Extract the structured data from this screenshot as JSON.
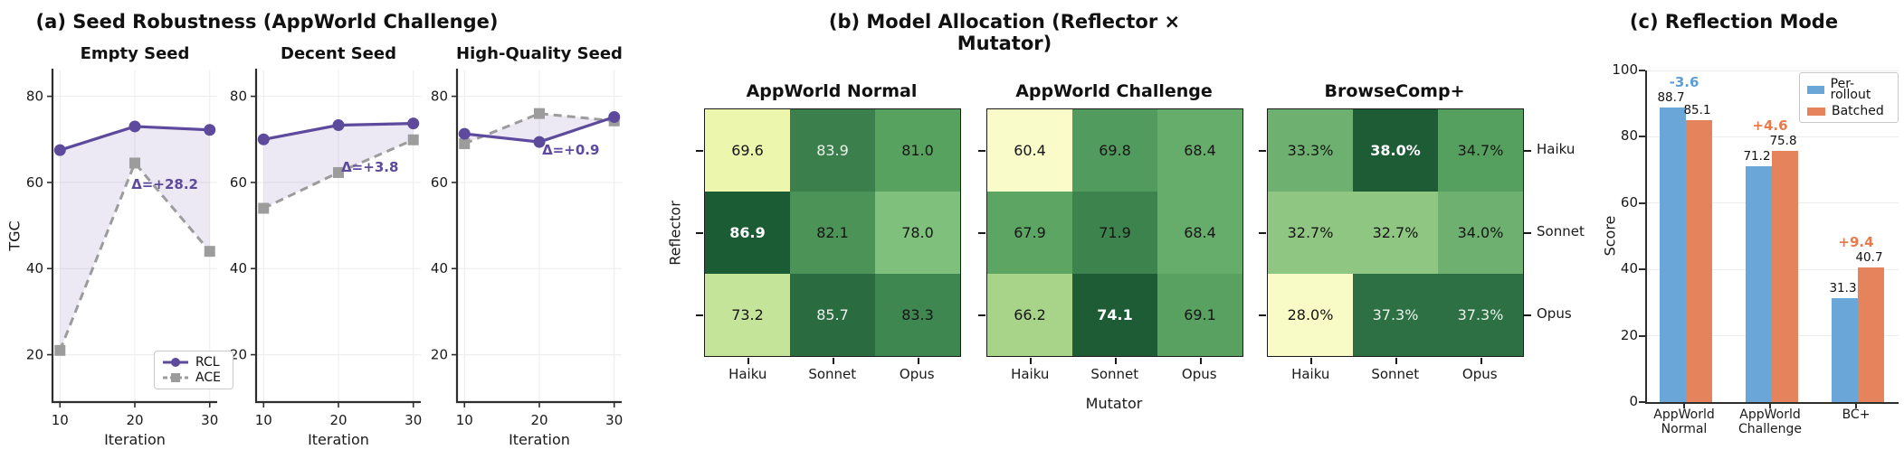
{
  "chart_data": [
    {
      "type": "line",
      "panel": "a",
      "title": "(a) Seed Robustness (AppWorld Challenge)",
      "xlabel": "Iteration",
      "ylabel": "TGC",
      "x": [
        10,
        20,
        30
      ],
      "x_ticks": [
        10,
        20,
        30
      ],
      "y_ticks": [
        20,
        40,
        60,
        80
      ],
      "xlim": [
        9,
        31
      ],
      "ylim": [
        9,
        86
      ],
      "grid": true,
      "legend": [
        "RCL",
        "ACE"
      ],
      "legend_position": "lower right of first subplot",
      "series_colors": {
        "RCL": "#5d4a9d",
        "ACE": "#9c9c9c"
      },
      "fill_between_color": "rgba(125,107,178,0.15)",
      "subplots": [
        {
          "title": "Empty Seed",
          "series": [
            {
              "name": "RCL",
              "values": [
                67.5,
                73.0,
                72.2
              ]
            },
            {
              "name": "ACE",
              "values": [
                21.0,
                64.5,
                44.0
              ]
            }
          ],
          "delta_label": "Δ=+28.2",
          "delta_at": [
            24.0,
            58.5
          ]
        },
        {
          "title": "Decent Seed",
          "series": [
            {
              "name": "RCL",
              "values": [
                70.0,
                73.3,
                73.7
              ]
            },
            {
              "name": "ACE",
              "values": [
                54.0,
                62.3,
                69.9
              ]
            }
          ],
          "delta_label": "Δ=+3.8",
          "delta_at": [
            24.2,
            62.5
          ]
        },
        {
          "title": "High-Quality Seed",
          "series": [
            {
              "name": "RCL",
              "values": [
                71.3,
                69.4,
                75.2
              ]
            },
            {
              "name": "ACE",
              "values": [
                69.0,
                76.0,
                74.3
              ]
            }
          ],
          "delta_label": "Δ=+0.9",
          "delta_at": [
            24.2,
            66.5
          ]
        }
      ]
    },
    {
      "type": "heatmap",
      "panel": "b",
      "title": "(b) Model Allocation (Reflector × Mutator)",
      "row_axis": "Reflector",
      "col_axis": "Mutator",
      "rows": [
        "Haiku",
        "Sonnet",
        "Opus"
      ],
      "cols": [
        "Haiku",
        "Sonnet",
        "Opus"
      ],
      "grids": [
        {
          "title": "AppWorld Normal",
          "values": [
            [
              69.6,
              83.9,
              81.0
            ],
            [
              86.9,
              82.1,
              78.0
            ],
            [
              73.2,
              85.7,
              83.3
            ]
          ],
          "cells": [
            [
              {
                "label": "69.6",
                "bg": "#edf6ad",
                "fg": "dark",
                "bold": false
              },
              {
                "label": "83.9",
                "bg": "#3a7f4c",
                "fg": "light",
                "bold": false
              },
              {
                "label": "81.0",
                "bg": "#58a25f",
                "fg": "dark",
                "bold": false
              }
            ],
            [
              {
                "label": "86.9",
                "bg": "#1c5c35",
                "fg": "light",
                "bold": true
              },
              {
                "label": "82.1",
                "bg": "#4b9356",
                "fg": "dark",
                "bold": false
              },
              {
                "label": "78.0",
                "bg": "#7ec07c",
                "fg": "dark",
                "bold": false
              }
            ],
            [
              {
                "label": "73.2",
                "bg": "#c4e49a",
                "fg": "dark",
                "bold": false
              },
              {
                "label": "85.7",
                "bg": "#2a6c40",
                "fg": "light",
                "bold": false
              },
              {
                "label": "83.3",
                "bg": "#3f8750",
                "fg": "dark",
                "bold": false
              }
            ]
          ]
        },
        {
          "title": "AppWorld Challenge",
          "values": [
            [
              60.4,
              69.8,
              68.4
            ],
            [
              67.9,
              71.9,
              68.4
            ],
            [
              66.2,
              74.1,
              69.1
            ]
          ],
          "cells": [
            [
              {
                "label": "60.4",
                "bg": "#f9fcc9",
                "fg": "dark",
                "bold": false
              },
              {
                "label": "69.8",
                "bg": "#509b5d",
                "fg": "dark",
                "bold": false
              },
              {
                "label": "68.4",
                "bg": "#66ac6a",
                "fg": "dark",
                "bold": false
              }
            ],
            [
              {
                "label": "67.9",
                "bg": "#5ca563",
                "fg": "dark",
                "bold": false
              },
              {
                "label": "71.9",
                "bg": "#3d834e",
                "fg": "dark",
                "bold": false
              },
              {
                "label": "68.4",
                "bg": "#66ac6a",
                "fg": "dark",
                "bold": false
              }
            ],
            [
              {
                "label": "66.2",
                "bg": "#a8d489",
                "fg": "dark",
                "bold": false
              },
              {
                "label": "74.1",
                "bg": "#1d5c35",
                "fg": "light",
                "bold": true
              },
              {
                "label": "69.1",
                "bg": "#58a160",
                "fg": "dark",
                "bold": false
              }
            ]
          ]
        },
        {
          "title": "BrowseComp+",
          "values": [
            [
              33.3,
              38.0,
              34.7
            ],
            [
              32.7,
              32.7,
              34.0
            ],
            [
              28.0,
              37.3,
              37.3
            ]
          ],
          "cells": [
            [
              {
                "label": "33.3%",
                "bg": "#6db06f",
                "fg": "dark",
                "bold": false
              },
              {
                "label": "38.0%",
                "bg": "#1d5c35",
                "fg": "light",
                "bold": true
              },
              {
                "label": "34.7%",
                "bg": "#56a05f",
                "fg": "dark",
                "bold": false
              }
            ],
            [
              {
                "label": "32.7%",
                "bg": "#8ec682",
                "fg": "dark",
                "bold": false
              },
              {
                "label": "32.7%",
                "bg": "#8ec682",
                "fg": "dark",
                "bold": false
              },
              {
                "label": "34.0%",
                "bg": "#6db06f",
                "fg": "dark",
                "bold": false
              }
            ],
            [
              {
                "label": "28.0%",
                "bg": "#f8fbc5",
                "fg": "dark",
                "bold": false
              },
              {
                "label": "37.3%",
                "bg": "#2d7043",
                "fg": "light",
                "bold": false
              },
              {
                "label": "37.3%",
                "bg": "#2d7043",
                "fg": "light",
                "bold": false
              }
            ]
          ]
        }
      ]
    },
    {
      "type": "bar",
      "panel": "c",
      "title": "(c) Reflection Mode",
      "ylabel": "Score",
      "ylim": [
        0,
        100
      ],
      "y_ticks": [
        0,
        20,
        40,
        60,
        80,
        100
      ],
      "grid": true,
      "categories": [
        [
          "AppWorld",
          "Normal"
        ],
        [
          "AppWorld",
          "Challenge"
        ],
        [
          "BC+"
        ]
      ],
      "series": [
        {
          "name": "Per-rollout",
          "color": "#6ba6d8",
          "values": [
            88.7,
            71.2,
            31.3
          ]
        },
        {
          "name": "Batched",
          "color": "#e5845c",
          "values": [
            85.1,
            75.8,
            40.7
          ]
        }
      ],
      "deltas": [
        {
          "label": "-3.6",
          "color": "#5c9fd6"
        },
        {
          "label": "+4.6",
          "color": "#e87a4e"
        },
        {
          "label": "+9.4",
          "color": "#e87a4e"
        }
      ],
      "legend_position": "upper right"
    }
  ]
}
